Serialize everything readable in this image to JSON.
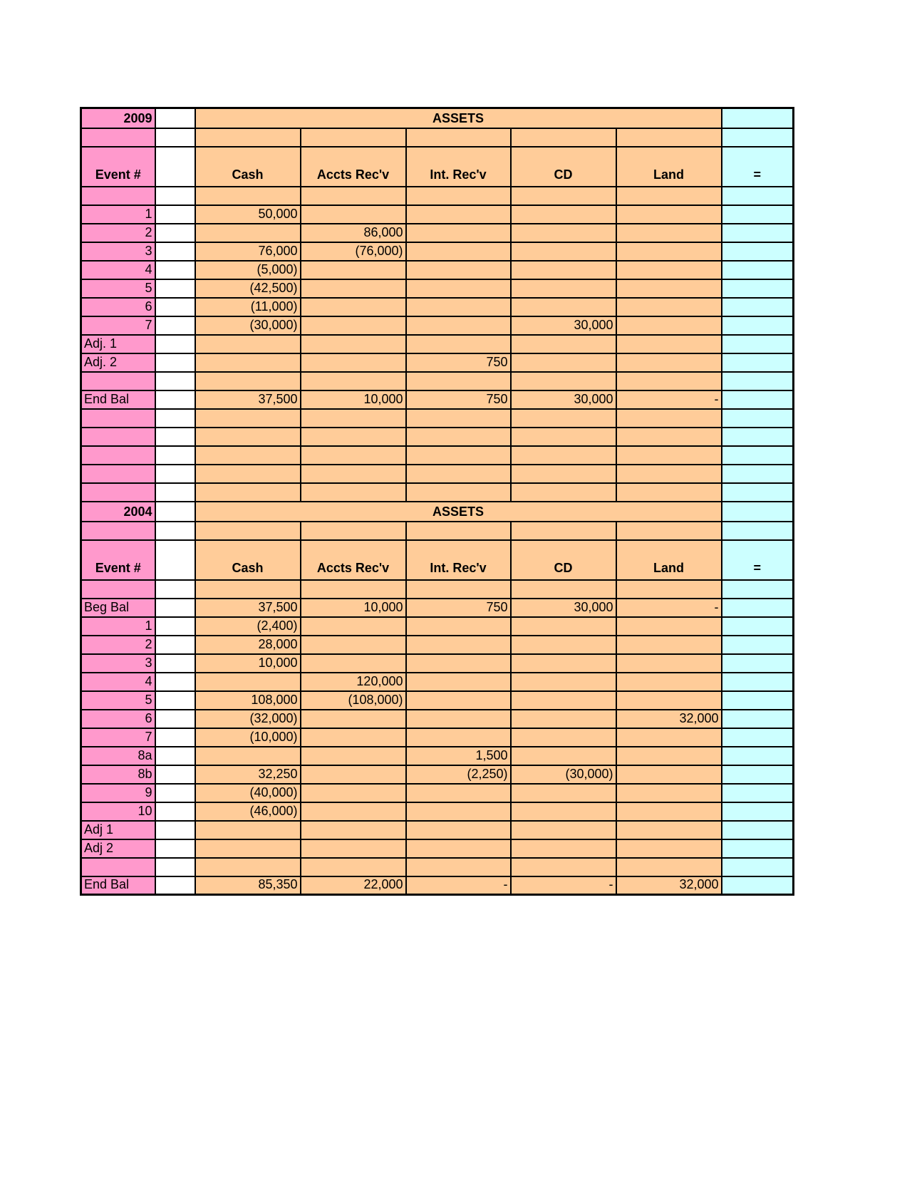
{
  "page": {
    "background_color": "#FFFFFF"
  },
  "colors": {
    "row_label_bg": "#FF99CC",
    "data_bg": "#FFCC99",
    "check_bg": "#CCFFFF",
    "grid": "#000000",
    "text": "#000000"
  },
  "sheet": {
    "tables": [
      {
        "year": "2009",
        "banner": "ASSETS",
        "row_label_header": "Event #",
        "column_headers": [
          "Cash",
          "Accts Rec'v",
          "Int. Rec'v",
          "CD",
          "Land"
        ],
        "check_header": "=",
        "rows": [
          {
            "label": "1",
            "cells": [
              "50,000",
              "",
              "",
              "",
              ""
            ]
          },
          {
            "label": "2",
            "cells": [
              "",
              "86,000",
              "",
              "",
              ""
            ]
          },
          {
            "label": "3",
            "cells": [
              "76,000",
              "(76,000)",
              "",
              "",
              ""
            ]
          },
          {
            "label": "4",
            "cells": [
              "(5,000)",
              "",
              "",
              "",
              ""
            ]
          },
          {
            "label": "5",
            "cells": [
              "(42,500)",
              "",
              "",
              "",
              ""
            ]
          },
          {
            "label": "6",
            "cells": [
              "(11,000)",
              "",
              "",
              "",
              ""
            ]
          },
          {
            "label": "7",
            "cells": [
              "(30,000)",
              "",
              "",
              "30,000",
              ""
            ]
          },
          {
            "label": "Adj. 1",
            "cells": [
              "",
              "",
              "",
              "",
              ""
            ]
          },
          {
            "label": "Adj. 2",
            "cells": [
              "",
              "",
              "750",
              "",
              ""
            ]
          },
          {
            "label": "",
            "cells": [
              "",
              "",
              "",
              "",
              ""
            ]
          },
          {
            "label": "End Bal",
            "cells": [
              "37,500",
              "10,000",
              "750",
              "30,000",
              "-"
            ]
          }
        ],
        "blank_rows_after": 5
      },
      {
        "year": "2004",
        "banner": "ASSETS",
        "row_label_header": "Event #",
        "column_headers": [
          "Cash",
          "Accts Rec'v",
          "Int. Rec'v",
          "CD",
          "Land"
        ],
        "check_header": "=",
        "rows": [
          {
            "label": "Beg Bal",
            "cells": [
              "37,500",
              "10,000",
              "750",
              "30,000",
              "-"
            ]
          },
          {
            "label": "1",
            "cells": [
              "(2,400)",
              "",
              "",
              "",
              ""
            ]
          },
          {
            "label": "2",
            "cells": [
              "28,000",
              "",
              "",
              "",
              ""
            ]
          },
          {
            "label": "3",
            "cells": [
              "10,000",
              "",
              "",
              "",
              ""
            ]
          },
          {
            "label": "4",
            "cells": [
              "",
              "120,000",
              "",
              "",
              ""
            ]
          },
          {
            "label": "5",
            "cells": [
              "108,000",
              "(108,000)",
              "",
              "",
              ""
            ]
          },
          {
            "label": "6",
            "cells": [
              "(32,000)",
              "",
              "",
              "",
              "32,000"
            ]
          },
          {
            "label": "7",
            "cells": [
              "(10,000)",
              "",
              "",
              "",
              ""
            ]
          },
          {
            "label": "8a",
            "cells": [
              "",
              "",
              "1,500",
              "",
              ""
            ]
          },
          {
            "label": "8b",
            "cells": [
              "32,250",
              "",
              "(2,250)",
              "(30,000)",
              ""
            ]
          },
          {
            "label": "9",
            "cells": [
              "(40,000)",
              "",
              "",
              "",
              ""
            ]
          },
          {
            "label": "10",
            "cells": [
              "(46,000)",
              "",
              "",
              "",
              ""
            ]
          },
          {
            "label": "Adj 1",
            "cells": [
              "",
              "",
              "",
              "",
              ""
            ]
          },
          {
            "label": "Adj 2",
            "cells": [
              "",
              "",
              "",
              "",
              ""
            ]
          },
          {
            "label": "",
            "cells": [
              "",
              "",
              "",
              "",
              ""
            ]
          },
          {
            "label": "End Bal",
            "cells": [
              "85,350",
              "22,000",
              "-",
              "-",
              "32,000"
            ]
          }
        ],
        "blank_rows_after": 0
      }
    ]
  }
}
